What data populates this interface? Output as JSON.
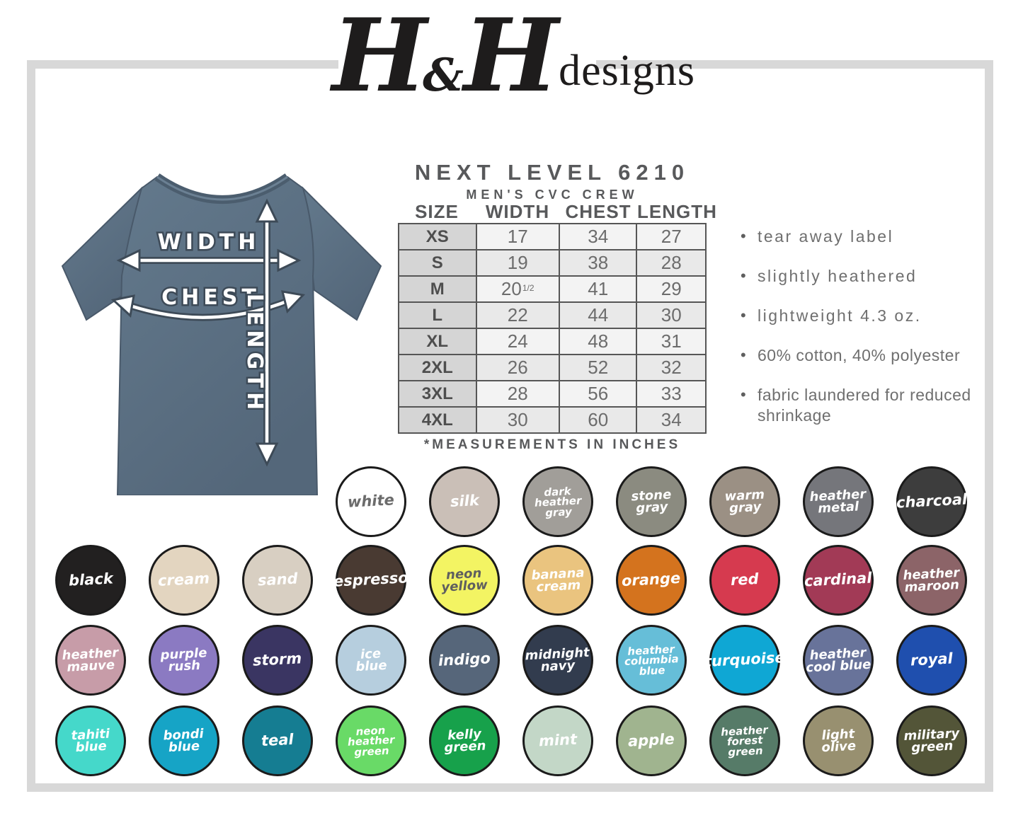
{
  "logo": {
    "script_left": "H",
    "amp": "&",
    "script_right": "H",
    "suffix": "designs"
  },
  "product": {
    "title": "NEXT LEVEL 6210",
    "subtitle": "MEN'S CVC CREW",
    "footnote": "*MEASUREMENTS IN INCHES"
  },
  "size_chart": {
    "columns": [
      "SIZE",
      "WIDTH",
      "CHEST",
      "LENGTH"
    ],
    "rows": [
      [
        "XS",
        "17",
        "34",
        "27"
      ],
      [
        "S",
        "19",
        "38",
        "28"
      ],
      [
        "M",
        "20^1/2",
        "41",
        "29"
      ],
      [
        "L",
        "22",
        "44",
        "30"
      ],
      [
        "XL",
        "24",
        "48",
        "31"
      ],
      [
        "2XL",
        "26",
        "52",
        "32"
      ],
      [
        "3XL",
        "28",
        "56",
        "33"
      ],
      [
        "4XL",
        "30",
        "60",
        "34"
      ]
    ]
  },
  "features": [
    "tear away label",
    "slightly heathered",
    "lightweight 4.3 oz.",
    "60% cotton, 40% polyester",
    "fabric laundered for reduced shrinkage"
  ],
  "diagram_labels": {
    "width": "WIDTH",
    "chest": "CHEST",
    "length": "LENGTH"
  },
  "colors": {
    "shirt": "#5c7183",
    "shirt_dark": "#4b5d6e",
    "frame": "#d8d8d8"
  },
  "swatch_rows": [
    [
      {
        "name": "white",
        "bg": "#ffffff",
        "fg": "#6b6b6b"
      },
      {
        "name": "silk",
        "bg": "#cabfb7",
        "fg": "#ffffff"
      },
      {
        "name": "dark\nheather\ngray",
        "bg": "#a19e99",
        "fg": "#ffffff"
      },
      {
        "name": "stone\ngray",
        "bg": "#8b8b80",
        "fg": "#ffffff"
      },
      {
        "name": "warm\ngray",
        "bg": "#9b9084",
        "fg": "#ffffff"
      },
      {
        "name": "heather\nmetal",
        "bg": "#75767b",
        "fg": "#ffffff"
      },
      {
        "name": "charcoal",
        "bg": "#3d3d3d",
        "fg": "#ffffff"
      }
    ],
    [
      {
        "name": "black",
        "bg": "#222020",
        "fg": "#ffffff"
      },
      {
        "name": "cream",
        "bg": "#e3d5c0",
        "fg": "#ffffff"
      },
      {
        "name": "sand",
        "bg": "#d8cfc2",
        "fg": "#ffffff"
      },
      {
        "name": "espresso",
        "bg": "#493a32",
        "fg": "#ffffff"
      },
      {
        "name": "neon\nyellow",
        "bg": "#f3f463",
        "fg": "#5f5f5f"
      },
      {
        "name": "banana\ncream",
        "bg": "#eac47f",
        "fg": "#ffffff"
      },
      {
        "name": "orange",
        "bg": "#d4731e",
        "fg": "#ffffff"
      },
      {
        "name": "red",
        "bg": "#d63a4f",
        "fg": "#ffffff"
      },
      {
        "name": "cardinal",
        "bg": "#a23a56",
        "fg": "#ffffff"
      },
      {
        "name": "heather\nmaroon",
        "bg": "#8c6468",
        "fg": "#ffffff"
      }
    ],
    [
      {
        "name": "heather\nmauve",
        "bg": "#c79ca8",
        "fg": "#ffffff"
      },
      {
        "name": "purple\nrush",
        "bg": "#8b7ac2",
        "fg": "#ffffff"
      },
      {
        "name": "storm",
        "bg": "#3a3562",
        "fg": "#ffffff"
      },
      {
        "name": "ice\nblue",
        "bg": "#b6cede",
        "fg": "#ffffff"
      },
      {
        "name": "indigo",
        "bg": "#56667a",
        "fg": "#ffffff"
      },
      {
        "name": "midnight\nnavy",
        "bg": "#323c4e",
        "fg": "#ffffff"
      },
      {
        "name": "heather\ncolumbia\nblue",
        "bg": "#66bed8",
        "fg": "#ffffff"
      },
      {
        "name": "turquoise",
        "bg": "#0fa7d4",
        "fg": "#ffffff"
      },
      {
        "name": "heather\ncool blue",
        "bg": "#68739a",
        "fg": "#ffffff"
      },
      {
        "name": "royal",
        "bg": "#1f4fae",
        "fg": "#ffffff"
      }
    ],
    [
      {
        "name": "tahiti\nblue",
        "bg": "#45d8ca",
        "fg": "#ffffff"
      },
      {
        "name": "bondi\nblue",
        "bg": "#16a4c6",
        "fg": "#ffffff"
      },
      {
        "name": "teal",
        "bg": "#157d92",
        "fg": "#ffffff"
      },
      {
        "name": "neon\nheather\ngreen",
        "bg": "#69da67",
        "fg": "#ffffff"
      },
      {
        "name": "kelly\ngreen",
        "bg": "#17a14b",
        "fg": "#ffffff"
      },
      {
        "name": "mint",
        "bg": "#c3d7c7",
        "fg": "#ffffff"
      },
      {
        "name": "apple",
        "bg": "#a0b48f",
        "fg": "#ffffff"
      },
      {
        "name": "heather\nforest\ngreen",
        "bg": "#567b68",
        "fg": "#ffffff"
      },
      {
        "name": "light\nolive",
        "bg": "#989070",
        "fg": "#ffffff"
      },
      {
        "name": "military\ngreen",
        "bg": "#535538",
        "fg": "#ffffff"
      }
    ]
  ]
}
